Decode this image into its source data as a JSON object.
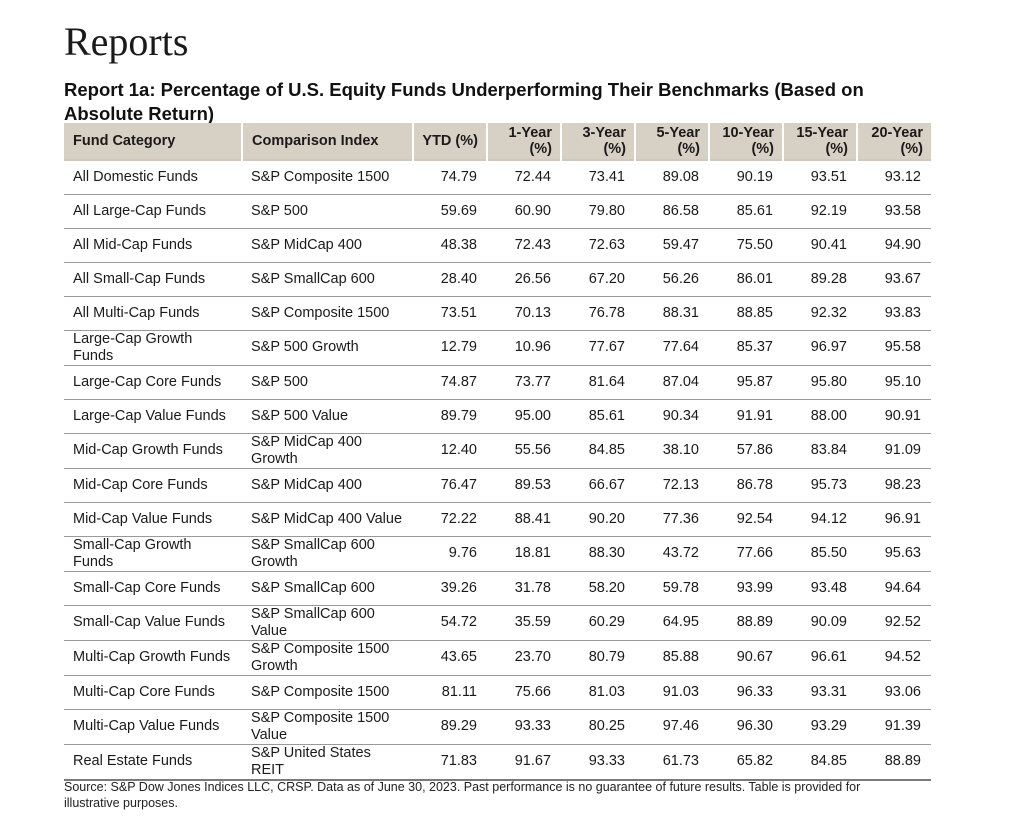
{
  "page": {
    "heading": "Reports",
    "report_title": "Report 1a: Percentage of U.S. Equity Funds Underperforming Their Benchmarks (Based on Absolute Return)",
    "source_note": "Source: S&P Dow Jones Indices LLC, CRSP.  Data as of June 30, 2023.  Past performance is no guarantee of future results.  Table is provided for illustrative purposes."
  },
  "table": {
    "columns": [
      "Fund Category",
      "Comparison Index",
      "YTD (%)",
      "1-Year (%)",
      "3-Year (%)",
      "5-Year (%)",
      "10-Year (%)",
      "15-Year (%)",
      "20-Year (%)"
    ],
    "header_bg": "#d7d0c5",
    "rows": [
      [
        "All Domestic Funds",
        "S&P Composite 1500",
        "74.79",
        "72.44",
        "73.41",
        "89.08",
        "90.19",
        "93.51",
        "93.12"
      ],
      [
        "All Large-Cap Funds",
        "S&P 500",
        "59.69",
        "60.90",
        "79.80",
        "86.58",
        "85.61",
        "92.19",
        "93.58"
      ],
      [
        "All Mid-Cap Funds",
        "S&P MidCap 400",
        "48.38",
        "72.43",
        "72.63",
        "59.47",
        "75.50",
        "90.41",
        "94.90"
      ],
      [
        "All Small-Cap Funds",
        "S&P SmallCap 600",
        "28.40",
        "26.56",
        "67.20",
        "56.26",
        "86.01",
        "89.28",
        "93.67"
      ],
      [
        "All Multi-Cap Funds",
        "S&P Composite 1500",
        "73.51",
        "70.13",
        "76.78",
        "88.31",
        "88.85",
        "92.32",
        "93.83"
      ],
      [
        "Large-Cap Growth Funds",
        "S&P 500 Growth",
        "12.79",
        "10.96",
        "77.67",
        "77.64",
        "85.37",
        "96.97",
        "95.58"
      ],
      [
        "Large-Cap Core Funds",
        "S&P 500",
        "74.87",
        "73.77",
        "81.64",
        "87.04",
        "95.87",
        "95.80",
        "95.10"
      ],
      [
        "Large-Cap Value Funds",
        "S&P 500 Value",
        "89.79",
        "95.00",
        "85.61",
        "90.34",
        "91.91",
        "88.00",
        "90.91"
      ],
      [
        "Mid-Cap Growth Funds",
        "S&P MidCap 400 Growth",
        "12.40",
        "55.56",
        "84.85",
        "38.10",
        "57.86",
        "83.84",
        "91.09"
      ],
      [
        "Mid-Cap Core Funds",
        "S&P MidCap 400",
        "76.47",
        "89.53",
        "66.67",
        "72.13",
        "86.78",
        "95.73",
        "98.23"
      ],
      [
        "Mid-Cap Value Funds",
        "S&P MidCap 400 Value",
        "72.22",
        "88.41",
        "90.20",
        "77.36",
        "92.54",
        "94.12",
        "96.91"
      ],
      [
        "Small-Cap Growth Funds",
        "S&P SmallCap 600 Growth",
        "9.76",
        "18.81",
        "88.30",
        "43.72",
        "77.66",
        "85.50",
        "95.63"
      ],
      [
        "Small-Cap Core Funds",
        "S&P SmallCap 600",
        "39.26",
        "31.78",
        "58.20",
        "59.78",
        "93.99",
        "93.48",
        "94.64"
      ],
      [
        "Small-Cap Value Funds",
        "S&P SmallCap 600 Value",
        "54.72",
        "35.59",
        "60.29",
        "64.95",
        "88.89",
        "90.09",
        "92.52"
      ],
      [
        "Multi-Cap Growth Funds",
        "S&P Composite 1500 Growth",
        "43.65",
        "23.70",
        "80.79",
        "85.88",
        "90.67",
        "96.61",
        "94.52"
      ],
      [
        "Multi-Cap Core Funds",
        "S&P Composite 1500",
        "81.11",
        "75.66",
        "81.03",
        "91.03",
        "96.33",
        "93.31",
        "93.06"
      ],
      [
        "Multi-Cap Value Funds",
        "S&P Composite 1500 Value",
        "89.29",
        "93.33",
        "80.25",
        "97.46",
        "96.30",
        "93.29",
        "91.39"
      ],
      [
        "Real Estate Funds",
        "S&P United States REIT",
        "71.83",
        "91.67",
        "93.33",
        "61.73",
        "65.82",
        "84.85",
        "88.89"
      ]
    ]
  }
}
